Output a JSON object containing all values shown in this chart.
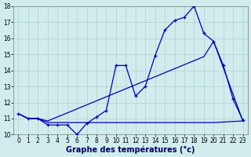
{
  "xlabel": "Graphe des températures (°c)",
  "hours": [
    0,
    1,
    2,
    3,
    4,
    5,
    6,
    7,
    8,
    9,
    10,
    11,
    12,
    13,
    14,
    15,
    16,
    17,
    18,
    19,
    20,
    21,
    22,
    23
  ],
  "temp_actual": [
    11.3,
    11.0,
    11.0,
    10.6,
    10.6,
    10.6,
    10.0,
    10.7,
    11.1,
    11.5,
    14.3,
    14.3,
    12.4,
    13.0,
    14.9,
    16.5,
    17.1,
    17.3,
    18.0,
    16.3,
    15.8,
    14.3,
    12.2,
    10.9
  ],
  "trend_upper_x": [
    0,
    1,
    2,
    3,
    4,
    5,
    6,
    7,
    8,
    9,
    10,
    11,
    12,
    13,
    14,
    15,
    16,
    17,
    18,
    19,
    20,
    23
  ],
  "trend_upper_y": [
    11.3,
    11.0,
    11.0,
    10.85,
    11.1,
    11.35,
    11.6,
    11.85,
    12.1,
    12.35,
    12.6,
    12.85,
    13.1,
    13.35,
    13.6,
    13.85,
    14.1,
    14.35,
    14.6,
    14.85,
    15.8,
    10.85
  ],
  "trend_lower_x": [
    0,
    1,
    2,
    3,
    4,
    5,
    6,
    7,
    8,
    9,
    10,
    16,
    20,
    23
  ],
  "trend_lower_y": [
    11.3,
    11.0,
    11.0,
    10.75,
    10.75,
    10.75,
    10.75,
    10.75,
    10.75,
    10.75,
    10.75,
    10.75,
    10.75,
    10.85
  ],
  "ylim": [
    10,
    18
  ],
  "yticks": [
    10,
    11,
    12,
    13,
    14,
    15,
    16,
    17,
    18
  ],
  "line_color": "#0000bb",
  "marker_color": "#0000bb",
  "bg_color": "#d0ecec",
  "grid_color": "#aacccc",
  "xlabel_color": "#000066",
  "xlabel_fontsize": 7,
  "tick_fontsize": 5.5,
  "linewidth": 0.9
}
